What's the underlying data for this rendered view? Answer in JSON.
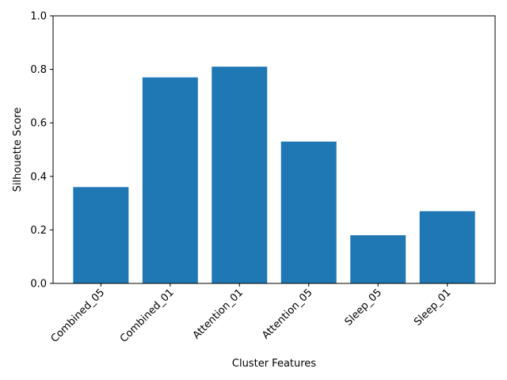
{
  "chart_data": {
    "type": "bar",
    "categories": [
      "Combined_05",
      "Combined_01",
      "Attention_01",
      "Attention_05",
      "Sleep_05",
      "Sleep_01"
    ],
    "values": [
      0.36,
      0.77,
      0.81,
      0.53,
      0.18,
      0.27
    ],
    "xlabel": "Cluster Features",
    "ylabel": "Silhouette Score",
    "ylim": [
      0,
      1.0
    ],
    "yticks": [
      "0.0",
      "0.2",
      "0.4",
      "0.6",
      "0.8",
      "1.0"
    ],
    "bar_color": "#1f77b4",
    "grid": false,
    "legend": "none"
  }
}
